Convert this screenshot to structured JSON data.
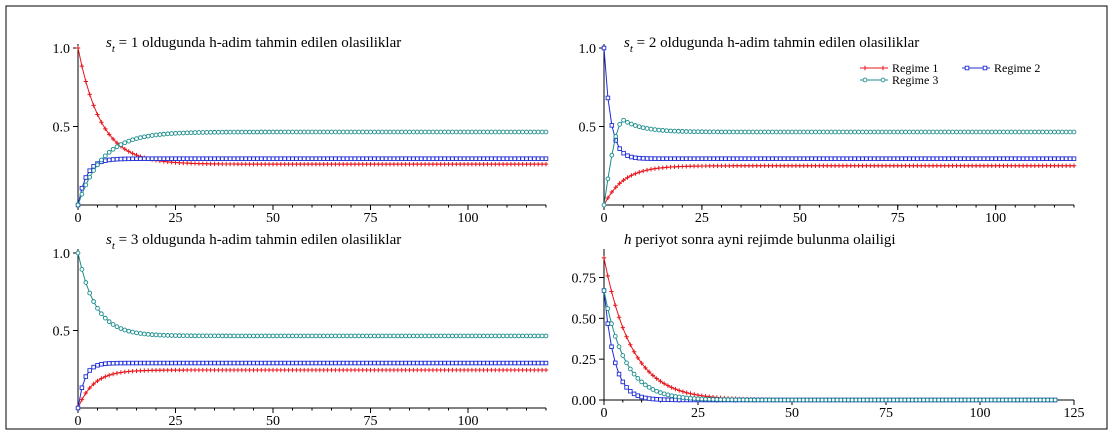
{
  "colors": {
    "regime1": "#e8161c",
    "regime2": "#1f2bd6",
    "regime3": "#1a8c8c",
    "frame": "#000000"
  },
  "legend": {
    "entries": [
      "Regime 1",
      "Regime 2",
      "Regime 3"
    ]
  },
  "chart_data": [
    {
      "type": "line",
      "title_var": "s",
      "title_sub": "t",
      "title_rest": " = 1 oldugunda h-adim tahmin edilen olasiliklar",
      "x_ticks": [
        "0",
        "25",
        "50",
        "75",
        "100"
      ],
      "y_ticks": [
        "0.5",
        "1.0"
      ],
      "xlim": [
        0,
        120
      ],
      "ylim": [
        0,
        1.0
      ],
      "n_points": 121,
      "series": [
        {
          "name": "Regime 1",
          "start": 1.0,
          "end": 0.26,
          "rate": 0.17,
          "peak": null
        },
        {
          "name": "Regime 2",
          "start": 0.0,
          "end": 0.295,
          "rate": 0.45,
          "peak": null
        },
        {
          "name": "Regime 3",
          "start": 0.0,
          "end": 0.465,
          "rate": 0.16,
          "peak": null
        }
      ]
    },
    {
      "type": "line",
      "title_var": "s",
      "title_sub": "t",
      "title_rest": " = 2 oldugunda h-adim tahmin edilen olasiliklar",
      "x_ticks": [
        "0",
        "25",
        "50",
        "75",
        "100"
      ],
      "y_ticks": [
        "0.5",
        "1.0"
      ],
      "xlim": [
        0,
        120
      ],
      "ylim": [
        0,
        1.0
      ],
      "n_points": 121,
      "series": [
        {
          "name": "Regime 1",
          "start": 0.0,
          "end": 0.25,
          "rate": 0.2,
          "peak": null
        },
        {
          "name": "Regime 2",
          "start": 1.0,
          "end": 0.295,
          "rate": 0.6,
          "peak": null
        },
        {
          "name": "Regime 3",
          "start": 0.0,
          "end": 0.465,
          "rate": 0.2,
          "peak": [
            5,
            0.54
          ]
        }
      ]
    },
    {
      "type": "line",
      "title_var": "s",
      "title_sub": "t",
      "title_rest": " = 3 oldugunda h-adim tahmin edilen olasiliklar",
      "x_ticks": [
        "0",
        "25",
        "50",
        "75",
        "100"
      ],
      "y_ticks": [
        "0.5",
        "1.0"
      ],
      "xlim": [
        0,
        120
      ],
      "ylim": [
        0,
        1.0
      ],
      "n_points": 121,
      "series": [
        {
          "name": "Regime 1",
          "start": 0.0,
          "end": 0.245,
          "rate": 0.25,
          "peak": null
        },
        {
          "name": "Regime 2",
          "start": 0.0,
          "end": 0.29,
          "rate": 0.6,
          "peak": null
        },
        {
          "name": "Regime 3",
          "start": 1.0,
          "end": 0.465,
          "rate": 0.22,
          "peak": null
        }
      ]
    },
    {
      "type": "line",
      "title_var": "h",
      "title_sub": "",
      "title_rest": " periyot sonra ayni rejimde bulunma olailigi",
      "x_ticks": [
        "0",
        "25",
        "50",
        "75",
        "100",
        "125"
      ],
      "y_ticks": [
        "0.00",
        "0.25",
        "0.50",
        "0.75"
      ],
      "xlim": [
        0,
        125
      ],
      "ylim": [
        0,
        0.9
      ],
      "n_points": 121,
      "series": [
        {
          "name": "Regime 1",
          "start": 0.87,
          "end": 0.0,
          "rate": 0.135,
          "peak": null
        },
        {
          "name": "Regime 2",
          "start": 0.67,
          "end": 0.0,
          "rate": 0.36,
          "peak": null
        },
        {
          "name": "Regime 3",
          "start": 0.67,
          "end": 0.0,
          "rate": 0.18,
          "peak": null
        }
      ]
    }
  ]
}
